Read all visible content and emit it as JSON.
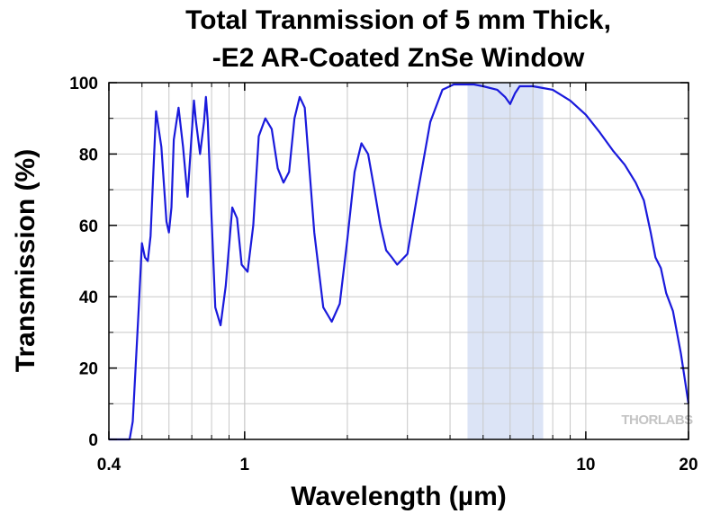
{
  "chart_data": {
    "type": "line",
    "title": [
      "Total Tranmission of 5 mm Thick,",
      "-E2 AR-Coated ZnSe Window"
    ],
    "xlabel": "Wavelength (µm)",
    "ylabel": "Transmission (%)",
    "x_scale": "log",
    "xlim": [
      0.4,
      20
    ],
    "ylim": [
      0,
      100
    ],
    "x_ticks": [
      0.4,
      1,
      10,
      20
    ],
    "x_tick_labels": [
      "0.4",
      "1",
      "10",
      "20"
    ],
    "y_ticks": [
      0,
      20,
      40,
      60,
      80,
      100
    ],
    "y_tick_labels": [
      "0",
      "20",
      "40",
      "60",
      "80",
      "100"
    ],
    "grid": true,
    "line_color": "#1a1adc",
    "shaded_band": {
      "x": [
        4.5,
        7.5
      ],
      "color": "#dce4f6"
    },
    "watermark": "THORLABS",
    "series": [
      {
        "x": [
          0.4,
          0.46,
          0.47,
          0.49,
          0.5,
          0.51,
          0.52,
          0.53,
          0.54,
          0.55,
          0.57,
          0.59,
          0.6,
          0.61,
          0.62,
          0.64,
          0.66,
          0.68,
          0.7,
          0.71,
          0.72,
          0.74,
          0.76,
          0.77,
          0.78,
          0.8,
          0.82,
          0.85,
          0.88,
          0.92,
          0.95,
          0.98,
          1.02,
          1.06,
          1.1,
          1.15,
          1.2,
          1.25,
          1.3,
          1.35,
          1.4,
          1.45,
          1.5,
          1.6,
          1.7,
          1.8,
          1.9,
          2.0,
          2.1,
          2.2,
          2.3,
          2.4,
          2.5,
          2.6,
          2.7,
          2.8,
          3.0,
          3.2,
          3.5,
          3.8,
          4.1,
          4.4,
          4.7,
          5.0,
          5.5,
          5.8,
          6.0,
          6.2,
          6.4,
          6.7,
          7.0,
          7.5,
          8.0,
          9.0,
          10.0,
          11.0,
          12.0,
          13.0,
          14.0,
          14.8,
          15.5,
          16.0,
          16.6,
          17.2,
          18.0,
          19.0,
          20.0
        ],
        "y": [
          0,
          0,
          5,
          38,
          55,
          51,
          50,
          57,
          75,
          92,
          82,
          61,
          58,
          65,
          84,
          93,
          82,
          68,
          86,
          95,
          89,
          80,
          89,
          96,
          89,
          62,
          37,
          32,
          43,
          65,
          62,
          49,
          47,
          60,
          85,
          90,
          87,
          76,
          72,
          75,
          90,
          96,
          93,
          58,
          37,
          33,
          38,
          56,
          75,
          83,
          80,
          70,
          60,
          53,
          51,
          49,
          52,
          68,
          89,
          98,
          99.5,
          99.5,
          99.5,
          99,
          98,
          96,
          94,
          97,
          99,
          99,
          99,
          98.5,
          98,
          95,
          91,
          86,
          81,
          77,
          72,
          67,
          58,
          51,
          48,
          41,
          36,
          24,
          10
        ]
      }
    ]
  }
}
